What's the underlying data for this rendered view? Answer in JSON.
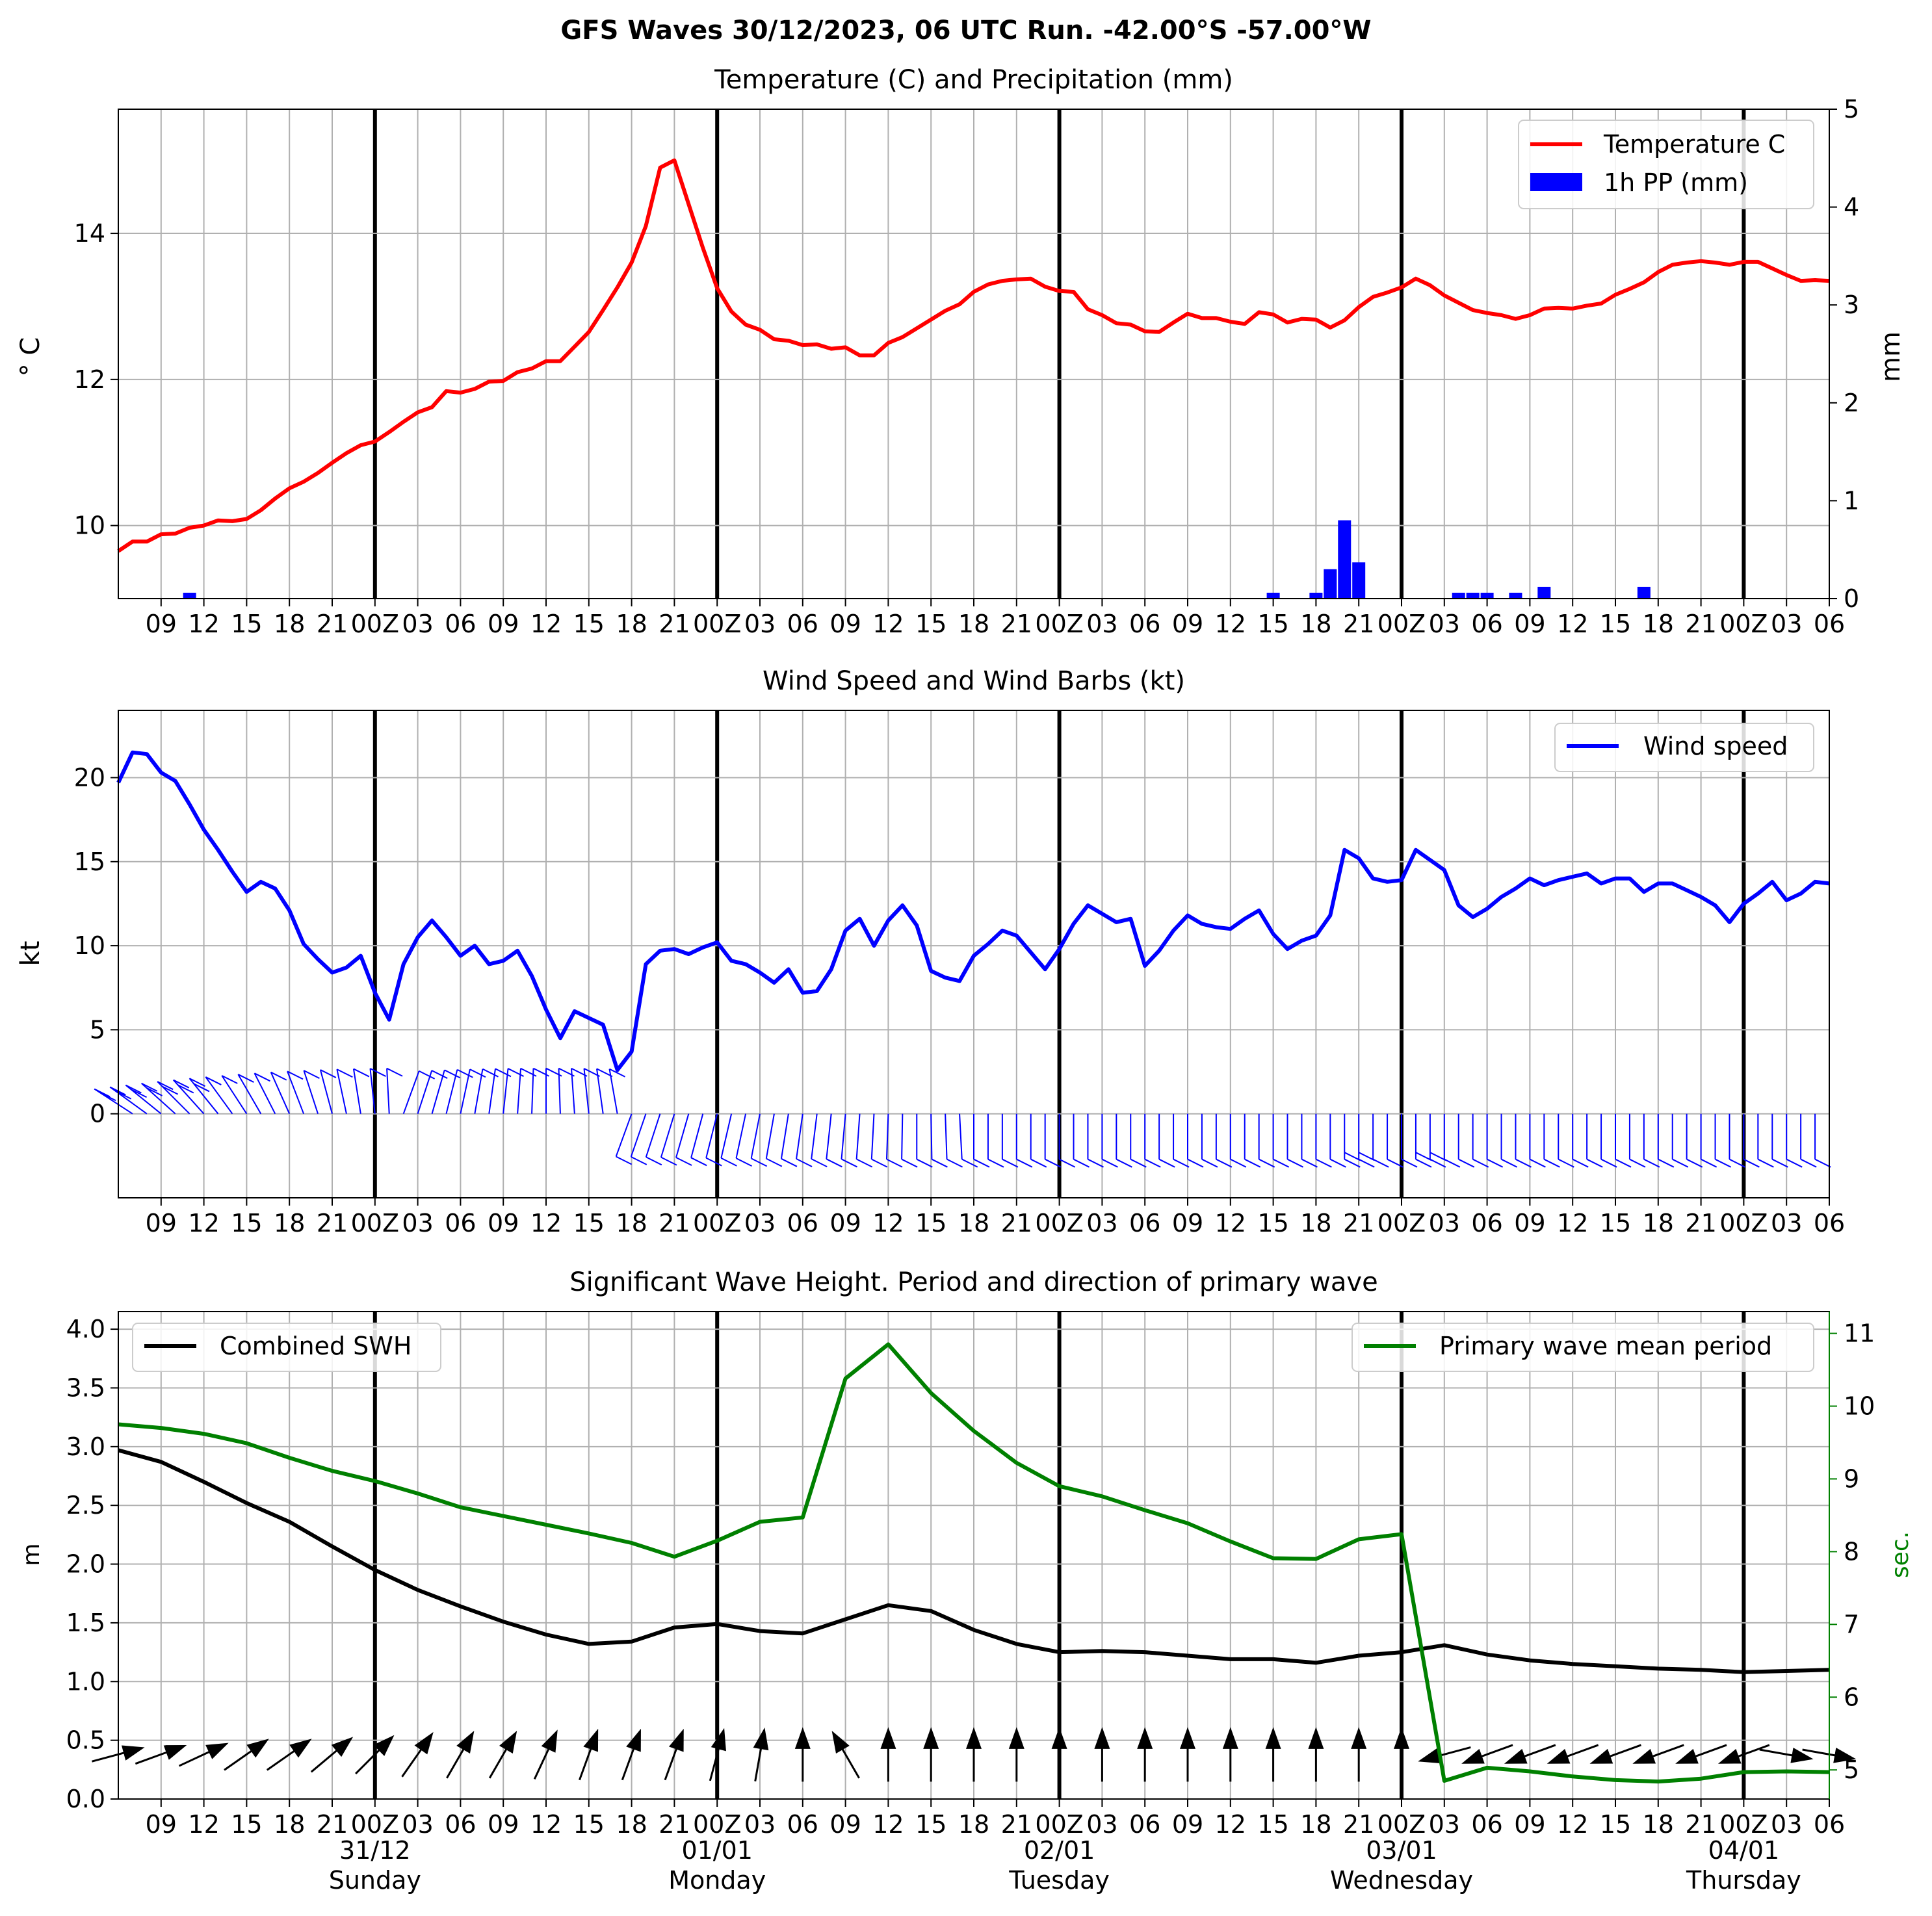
{
  "suptitle": "GFS Waves 30/12/2023, 06 UTC Run. -42.00°S -57.00°W",
  "x_tick_labels": [
    "09",
    "12",
    "15",
    "18",
    "21",
    "00Z",
    "03",
    "06",
    "09",
    "12",
    "15",
    "18",
    "21",
    "00Z",
    "03",
    "06",
    "09",
    "12",
    "15",
    "18",
    "21",
    "00Z",
    "03",
    "06",
    "09",
    "12",
    "15",
    "18",
    "21",
    "00Z",
    "03",
    "06",
    "09",
    "12",
    "15",
    "18",
    "21",
    "00Z",
    "03",
    "06"
  ],
  "day_labels": [
    {
      "date": "31/12",
      "weekday": "Sunday"
    },
    {
      "date": "01/01",
      "weekday": "Monday"
    },
    {
      "date": "02/01",
      "weekday": "Tuesday"
    },
    {
      "date": "03/01",
      "weekday": "Wednesday"
    },
    {
      "date": "04/01",
      "weekday": "Thursday"
    }
  ],
  "colors": {
    "temperature": "#ff0000",
    "precip": "#0000ff",
    "wind": "#0000ff",
    "swh": "#000000",
    "period": "#008000",
    "grid": "#b0b0b0"
  },
  "chart_data": [
    {
      "type": "line",
      "title": "Temperature (C) and Precipitation (mm)",
      "ylabel": "$^\\circ$C",
      "y2label": "mm",
      "x_unit": "hours from 30/12 06 UTC",
      "xlim": [
        0,
        120
      ],
      "ylim": [
        9,
        15.7
      ],
      "y_ticks": [
        10,
        12,
        14
      ],
      "y2lim": [
        0,
        5
      ],
      "y2_ticks": [
        0,
        1,
        2,
        3,
        4,
        5
      ],
      "legend": "top-right",
      "series": [
        {
          "name": "Temperature C",
          "x": [
            0,
            1,
            2,
            3,
            4,
            5,
            6,
            7,
            8,
            9,
            10,
            11,
            12,
            13,
            14,
            15,
            16,
            17,
            18,
            19,
            20,
            21,
            22,
            23,
            24,
            25,
            26,
            27,
            28,
            29,
            30,
            31,
            32,
            33,
            34,
            35,
            36,
            37,
            38,
            39,
            40,
            41,
            42,
            43,
            44,
            45,
            46,
            47,
            48,
            49,
            50,
            51,
            52,
            53,
            54,
            55,
            56,
            57,
            58,
            59,
            60,
            61,
            62,
            63,
            64,
            65,
            66,
            67,
            68,
            69,
            70,
            71,
            72,
            73,
            74,
            75,
            76,
            77,
            78,
            79,
            80,
            81,
            82,
            83,
            84,
            85,
            86,
            87,
            88,
            89,
            90,
            91,
            92,
            93,
            94,
            95,
            96,
            97,
            98,
            99,
            100,
            101,
            102,
            103,
            104,
            105,
            106,
            107,
            108,
            109,
            110,
            111,
            112,
            113,
            114,
            115,
            116,
            117,
            118,
            119,
            120
          ],
          "values": [
            9.65,
            9.78,
            9.78,
            9.88,
            9.89,
            9.97,
            10.0,
            10.07,
            10.06,
            10.09,
            10.21,
            10.37,
            10.51,
            10.6,
            10.72,
            10.86,
            10.99,
            11.1,
            11.15,
            11.28,
            11.42,
            11.55,
            11.62,
            11.84,
            11.82,
            11.87,
            11.97,
            11.98,
            12.1,
            12.15,
            12.25,
            12.25,
            12.45,
            12.65,
            12.95,
            13.26,
            13.6,
            14.1,
            14.9,
            15.0,
            14.4,
            13.8,
            13.25,
            12.93,
            12.75,
            12.68,
            12.55,
            12.53,
            12.47,
            12.48,
            12.42,
            12.44,
            12.33,
            12.33,
            12.5,
            12.58,
            12.7,
            12.82,
            12.94,
            13.03,
            13.2,
            13.3,
            13.35,
            13.37,
            13.38,
            13.27,
            13.21,
            13.2,
            12.96,
            12.88,
            12.77,
            12.75,
            12.66,
            12.65,
            12.78,
            12.9,
            12.84,
            12.84,
            12.79,
            12.76,
            12.92,
            12.89,
            12.78,
            12.83,
            12.82,
            12.71,
            12.81,
            12.99,
            13.13,
            13.19,
            13.26,
            13.38,
            13.29,
            13.15,
            13.05,
            12.95,
            12.91,
            12.88,
            12.83,
            12.88,
            12.97,
            12.98,
            12.97,
            13.01,
            13.04,
            13.16,
            13.24,
            13.33,
            13.47,
            13.57,
            13.6,
            13.62,
            13.6,
            13.57,
            13.61,
            13.61,
            13.52,
            13.43,
            13.35,
            13.36,
            13.35
          ]
        },
        {
          "name": "1h PP (mm)",
          "axis": "right",
          "type": "bar",
          "x": [
            5,
            81,
            84,
            85,
            86,
            87,
            94,
            95,
            96,
            98,
            100,
            107
          ],
          "values": [
            0.06,
            0.06,
            0.06,
            0.3,
            0.8,
            0.37,
            0.06,
            0.06,
            0.06,
            0.06,
            0.12,
            0.12
          ]
        }
      ]
    },
    {
      "type": "line",
      "title": "Wind Speed and Wind Barbs (kt)",
      "ylabel": "kt",
      "xlim": [
        0,
        120
      ],
      "ylim": [
        -5,
        24
      ],
      "y_ticks": [
        0,
        5,
        10,
        15,
        20
      ],
      "legend": "top-right",
      "series": [
        {
          "name": "Wind speed",
          "x": [
            0,
            1,
            2,
            3,
            4,
            5,
            6,
            7,
            8,
            9,
            10,
            11,
            12,
            13,
            14,
            15,
            16,
            17,
            18,
            19,
            20,
            21,
            22,
            23,
            24,
            25,
            26,
            27,
            28,
            29,
            30,
            31,
            32,
            33,
            34,
            35,
            36,
            37,
            38,
            39,
            40,
            41,
            42,
            43,
            44,
            45,
            46,
            47,
            48,
            49,
            50,
            51,
            52,
            53,
            54,
            55,
            56,
            57,
            58,
            59,
            60,
            61,
            62,
            63,
            64,
            65,
            66,
            67,
            68,
            69,
            70,
            71,
            72,
            73,
            74,
            75,
            76,
            77,
            78,
            79,
            80,
            81,
            82,
            83,
            84,
            85,
            86,
            87,
            88,
            89,
            90,
            91,
            92,
            93,
            94,
            95,
            96,
            97,
            98,
            99,
            100,
            101,
            102,
            103,
            104,
            105,
            106,
            107,
            108,
            109,
            110,
            111,
            112,
            113,
            114,
            115,
            116,
            117,
            118,
            119,
            120
          ],
          "values": [
            19.7,
            21.5,
            21.4,
            20.3,
            19.8,
            18.4,
            16.9,
            15.7,
            14.4,
            13.2,
            13.8,
            13.4,
            12.1,
            10.1,
            9.2,
            8.4,
            8.7,
            9.4,
            7.2,
            5.6,
            8.9,
            10.5,
            11.5,
            10.5,
            9.4,
            10.0,
            8.9,
            9.1,
            9.7,
            8.2,
            6.2,
            4.5,
            6.1,
            5.7,
            5.3,
            2.6,
            3.7,
            8.9,
            9.7,
            9.8,
            9.5,
            9.9,
            10.2,
            9.1,
            8.9,
            8.4,
            7.8,
            8.6,
            7.2,
            7.3,
            8.6,
            10.9,
            11.6,
            10.0,
            11.5,
            12.4,
            11.2,
            8.5,
            8.1,
            7.9,
            9.4,
            10.1,
            10.9,
            10.6,
            9.6,
            8.6,
            9.8,
            11.3,
            12.4,
            11.9,
            11.4,
            11.6,
            8.8,
            9.7,
            10.9,
            11.8,
            11.3,
            11.1,
            11.0,
            11.6,
            12.1,
            10.7,
            9.8,
            10.3,
            10.6,
            11.8,
            15.7,
            15.2,
            14.0,
            13.8,
            13.9,
            15.7,
            15.1,
            14.5,
            12.4,
            11.7,
            12.2,
            12.9,
            13.4,
            14.0,
            13.6,
            13.9,
            14.1,
            14.3,
            13.7,
            14.0,
            14.0,
            13.2,
            13.7,
            13.7,
            13.3,
            12.9,
            12.4,
            11.4,
            12.5,
            13.1,
            13.8,
            12.7,
            13.1,
            13.8,
            13.7
          ]
        }
      ],
      "barbs": {
        "x_step": 1,
        "comment": "wind barbs drawn along y=0"
      }
    },
    {
      "type": "line",
      "title": "Significant Wave Height. Period and direction of primary wave",
      "ylabel": "m",
      "y2label": "sec.",
      "xlim": [
        0,
        120
      ],
      "ylim": [
        0,
        4.15
      ],
      "y_ticks": [
        0.0,
        0.5,
        1.0,
        1.5,
        2.0,
        2.5,
        3.0,
        3.5,
        4.0
      ],
      "y2lim": [
        4.6,
        11.3
      ],
      "y2_ticks": [
        5,
        6,
        7,
        8,
        9,
        10,
        11
      ],
      "series": [
        {
          "name": "Combined SWH",
          "x": [
            0,
            3,
            6,
            9,
            12,
            15,
            18,
            21,
            24,
            27,
            30,
            33,
            36,
            39,
            42,
            45,
            48,
            51,
            54,
            57,
            60,
            63,
            66,
            69,
            72,
            75,
            78,
            81,
            84,
            87,
            90,
            93,
            96,
            99,
            102,
            105,
            108,
            111,
            114,
            117,
            120
          ],
          "values": [
            2.97,
            2.87,
            2.7,
            2.52,
            2.36,
            2.15,
            1.95,
            1.78,
            1.64,
            1.51,
            1.4,
            1.32,
            1.34,
            1.46,
            1.49,
            1.43,
            1.41,
            1.53,
            1.65,
            1.6,
            1.44,
            1.32,
            1.25,
            1.26,
            1.25,
            1.22,
            1.19,
            1.19,
            1.16,
            1.22,
            1.25,
            1.31,
            1.23,
            1.18,
            1.15,
            1.13,
            1.11,
            1.1,
            1.08,
            1.09,
            1.1
          ]
        },
        {
          "name": "Primary wave mean period",
          "axis": "right",
          "x": [
            0,
            3,
            6,
            9,
            12,
            15,
            18,
            21,
            24,
            27,
            30,
            33,
            36,
            39,
            42,
            45,
            48,
            51,
            54,
            57,
            60,
            63,
            66,
            69,
            72,
            75,
            78,
            81,
            84,
            87,
            90,
            93,
            96,
            99,
            102,
            105,
            108,
            111,
            114,
            117,
            120
          ],
          "values": [
            9.75,
            9.7,
            9.62,
            9.49,
            9.29,
            9.11,
            8.97,
            8.8,
            8.61,
            8.49,
            8.37,
            8.25,
            8.12,
            7.93,
            8.15,
            8.41,
            8.47,
            10.38,
            10.85,
            10.18,
            9.66,
            9.22,
            8.9,
            8.76,
            8.57,
            8.39,
            8.14,
            7.91,
            7.9,
            8.17,
            8.24,
            4.85,
            5.03,
            4.98,
            4.91,
            4.86,
            4.84,
            4.88,
            4.97,
            4.98,
            4.97
          ]
        }
      ],
      "direction_arrows": {
        "x": [
          0,
          3,
          6,
          9,
          12,
          15,
          18,
          21,
          24,
          27,
          30,
          33,
          36,
          39,
          42,
          45,
          48,
          51,
          54,
          57,
          60,
          63,
          66,
          69,
          72,
          75,
          78,
          81,
          84,
          87,
          90,
          93,
          96,
          99,
          102,
          105,
          108,
          111,
          114,
          117,
          120
        ],
        "angle_deg": [
          15,
          20,
          25,
          35,
          35,
          40,
          45,
          55,
          60,
          60,
          65,
          70,
          70,
          70,
          75,
          80,
          90,
          120,
          90,
          90,
          90,
          90,
          90,
          90,
          90,
          90,
          90,
          90,
          90,
          90,
          90,
          195,
          200,
          200,
          200,
          200,
          200,
          200,
          200,
          350,
          350
        ]
      }
    }
  ]
}
